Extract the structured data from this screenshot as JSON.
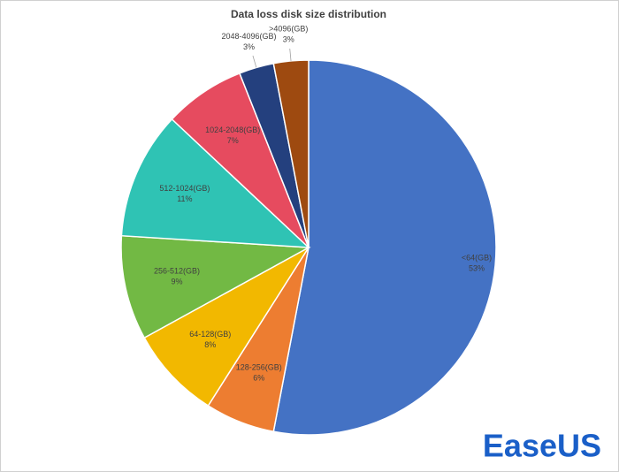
{
  "chart_data": {
    "type": "pie",
    "title": "Data loss disk size distribution",
    "categories": [
      "<64(GB)",
      "128-256(GB)",
      "64-128(GB)",
      "256-512(GB)",
      "512-1024(GB)",
      "1024-2048(GB)",
      "2048-4096(GB)",
      ">4096(GB)"
    ],
    "values": [
      53,
      6,
      8,
      9,
      11,
      7,
      3,
      3
    ],
    "value_labels": [
      "53%",
      "6%",
      "8%",
      "9%",
      "11%",
      "7%",
      "3%",
      "3%"
    ],
    "colors": [
      "#4472c4",
      "#ed7d31",
      "#f2b800",
      "#72b944",
      "#2fc3b4",
      "#e64b5f",
      "#24407e",
      "#9e4a10"
    ]
  },
  "watermark": "EaseUS"
}
